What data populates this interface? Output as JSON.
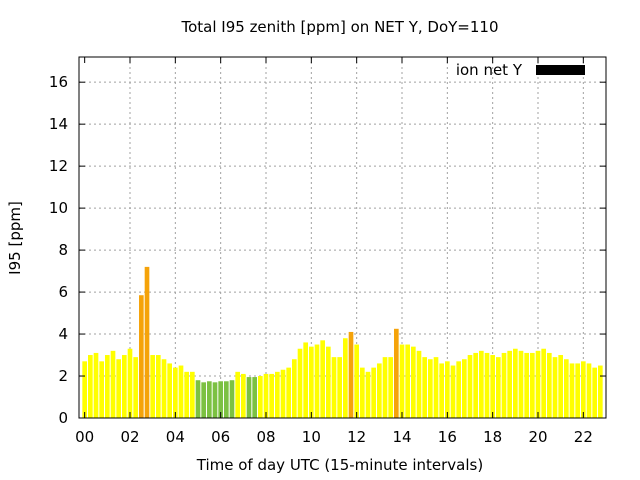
{
  "chart_data": {
    "type": "bar",
    "title": "Total I95 zenith [ppm] on NET Y, DoY=110",
    "xlabel": "Time of day UTC (15-minute intervals)",
    "ylabel": "I95 [ppm]",
    "ylim": [
      0,
      17.2
    ],
    "yticks": [
      "0",
      "2",
      "4",
      "6",
      "8",
      "10",
      "12",
      "14",
      "16"
    ],
    "xticks": [
      "00",
      "02",
      "04",
      "06",
      "08",
      "10",
      "12",
      "14",
      "16",
      "18",
      "20",
      "22"
    ],
    "x_step_hours": 0.25,
    "grid": true,
    "legend": {
      "label": "ion net Y",
      "color": "#000000",
      "position": "top-right"
    },
    "status_colors": {
      "normal": "#ffff00",
      "elevated": "#f5a30a",
      "low": "#7cc142"
    },
    "values": [
      2.7,
      3.0,
      3.1,
      2.7,
      3.0,
      3.2,
      2.8,
      3.0,
      3.3,
      2.9,
      5.85,
      7.2,
      3.0,
      3.0,
      2.8,
      2.6,
      2.4,
      2.5,
      2.2,
      2.2,
      1.8,
      1.7,
      1.75,
      1.7,
      1.75,
      1.75,
      1.8,
      2.2,
      2.1,
      1.95,
      1.95,
      2.0,
      2.1,
      2.1,
      2.2,
      2.3,
      2.4,
      2.8,
      3.3,
      3.6,
      3.4,
      3.5,
      3.7,
      3.4,
      2.9,
      2.9,
      3.8,
      4.1,
      3.5,
      2.4,
      2.2,
      2.4,
      2.6,
      2.9,
      2.9,
      4.25,
      3.5,
      3.5,
      3.4,
      3.2,
      2.9,
      2.8,
      2.9,
      2.6,
      2.7,
      2.5,
      2.7,
      2.8,
      3.0,
      3.1,
      3.2,
      3.1,
      3.0,
      2.9,
      3.1,
      3.2,
      3.3,
      3.2,
      3.1,
      3.1,
      3.2,
      3.3,
      3.1,
      2.9,
      3.0,
      2.8,
      2.6,
      2.6,
      2.7,
      2.6,
      2.4,
      2.5
    ],
    "status": [
      "normal",
      "normal",
      "normal",
      "normal",
      "normal",
      "normal",
      "normal",
      "normal",
      "normal",
      "normal",
      "elevated",
      "elevated",
      "normal",
      "normal",
      "normal",
      "normal",
      "normal",
      "normal",
      "normal",
      "normal",
      "low",
      "low",
      "low",
      "low",
      "low",
      "low",
      "low",
      "normal",
      "normal",
      "low",
      "low",
      "normal",
      "normal",
      "normal",
      "normal",
      "normal",
      "normal",
      "normal",
      "normal",
      "normal",
      "normal",
      "normal",
      "normal",
      "normal",
      "normal",
      "normal",
      "normal",
      "elevated",
      "normal",
      "normal",
      "normal",
      "normal",
      "normal",
      "normal",
      "normal",
      "elevated",
      "normal",
      "normal",
      "normal",
      "normal",
      "normal",
      "normal",
      "normal",
      "normal",
      "normal",
      "normal",
      "normal",
      "normal",
      "normal",
      "normal",
      "normal",
      "normal",
      "normal",
      "normal",
      "normal",
      "normal",
      "normal",
      "normal",
      "normal",
      "normal",
      "normal",
      "normal",
      "normal",
      "normal",
      "normal",
      "normal",
      "normal",
      "normal",
      "normal",
      "normal",
      "normal",
      "normal"
    ]
  }
}
